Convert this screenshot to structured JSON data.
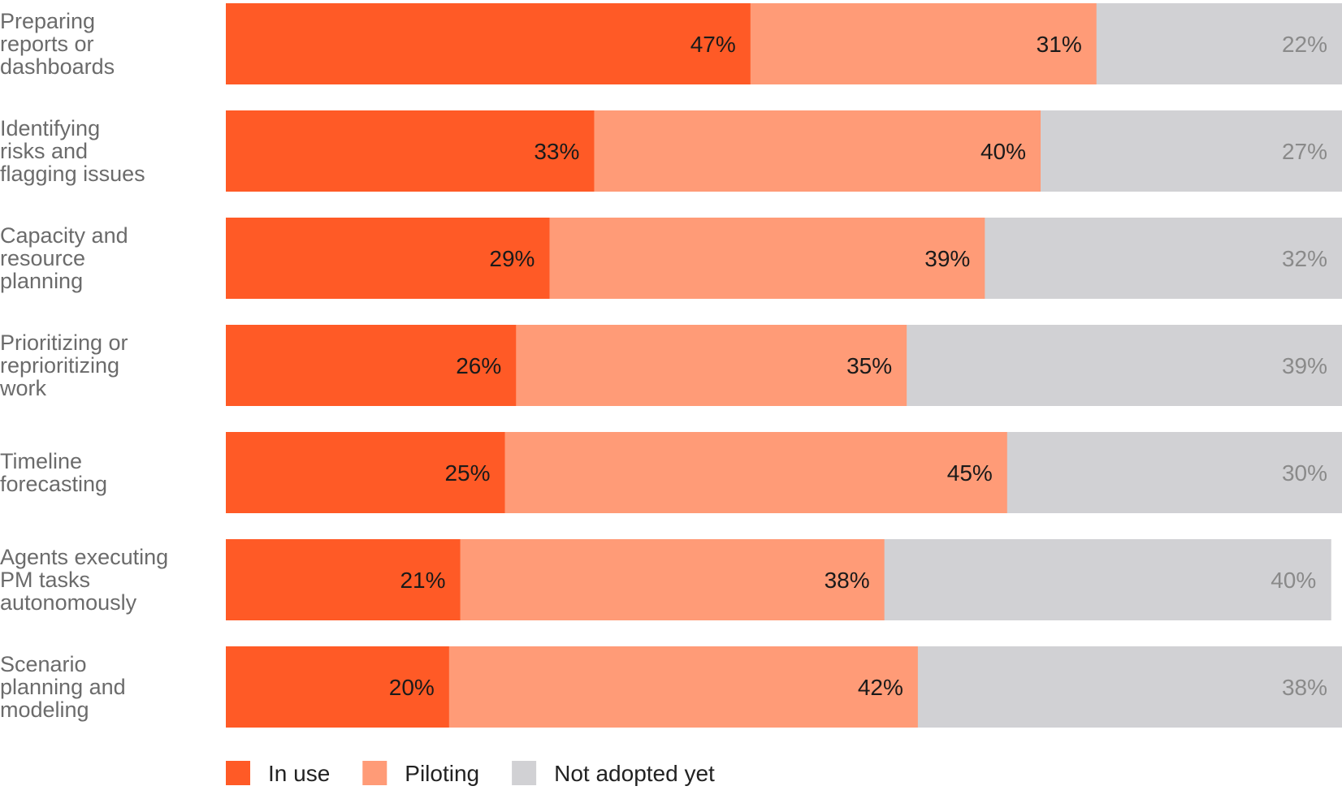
{
  "chart_data": {
    "type": "bar",
    "orientation": "horizontal",
    "stacked": true,
    "categories": [
      [
        "Preparing",
        "reports or",
        "dashboards"
      ],
      [
        "Identifying",
        "risks and",
        "flagging issues"
      ],
      [
        "Capacity and",
        "resource",
        "planning"
      ],
      [
        "Prioritizing or",
        "reprioritizing",
        "work"
      ],
      [
        "Timeline",
        "forecasting"
      ],
      [
        "Agents executing",
        "PM tasks",
        "autonomously"
      ],
      [
        "Scenario",
        "planning and",
        "modeling"
      ]
    ],
    "series": [
      {
        "name": "In use",
        "color": "#ff5a26",
        "label_color": "#1a1a1a",
        "values": [
          47,
          33,
          29,
          26,
          25,
          21,
          20
        ]
      },
      {
        "name": "Piloting",
        "color": "#ff9b77",
        "label_color": "#1a1a1a",
        "values": [
          31,
          40,
          39,
          35,
          45,
          38,
          42
        ]
      },
      {
        "name": "Not adopted yet",
        "color": "#d1d1d4",
        "label_color": "#8a8a8a",
        "values": [
          22,
          27,
          32,
          39,
          30,
          40,
          38
        ]
      }
    ],
    "value_suffix": "%",
    "xlim": [
      0,
      100
    ],
    "grid": false,
    "legend_position": "bottom-left"
  }
}
